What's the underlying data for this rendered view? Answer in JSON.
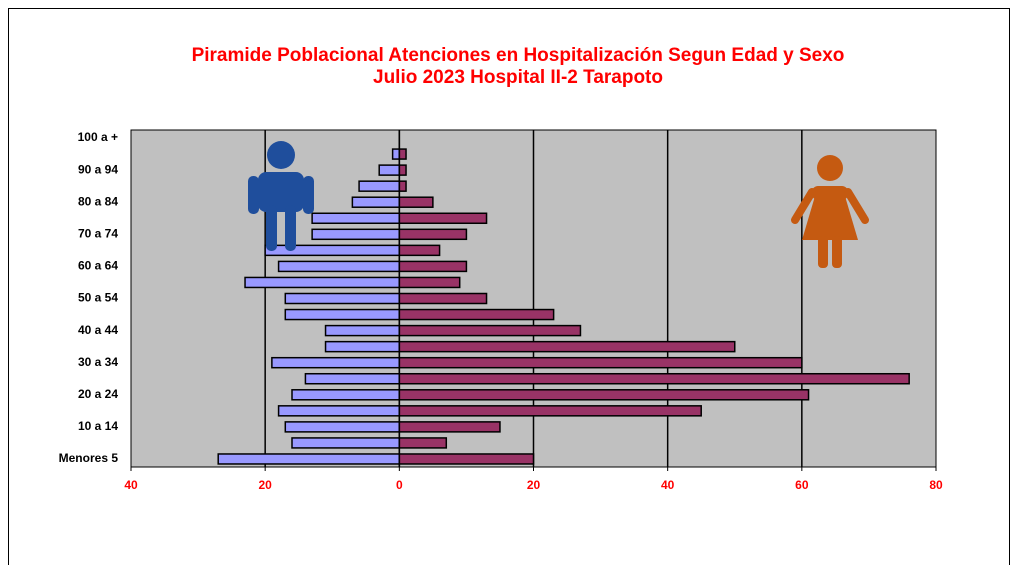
{
  "chart_data": {
    "type": "pyramid",
    "title": "Piramide Poblacional  Atenciones en Hospitalización Segun Edad y Sexo",
    "subtitle": "Julio 2023  Hospital II-2 Tarapoto",
    "categories": [
      "Menores 5",
      null,
      "10 a 14",
      null,
      "20 a 24",
      null,
      "30 a 34",
      null,
      "40 a 44",
      null,
      "50 a 54",
      null,
      "60 a 64",
      null,
      "70 a 74",
      null,
      "80 a 84",
      null,
      "90 a 94",
      null,
      "100 a +"
    ],
    "series": [
      {
        "color": "#9999ff",
        "values": [
          -27,
          -16,
          -17,
          -18,
          -16,
          -14,
          -19,
          -11,
          -11,
          -17,
          -17,
          -23,
          -18,
          -20,
          -13,
          -13,
          -7,
          -6,
          -3,
          -1,
          0
        ]
      },
      {
        "color": "#993366",
        "values": [
          20,
          7,
          15,
          45,
          61,
          76,
          60,
          50,
          27,
          23,
          13,
          9,
          10,
          6,
          10,
          13,
          5,
          1,
          1,
          1,
          0
        ]
      }
    ],
    "xlim": [
      -40,
      80
    ],
    "xticks": [
      {
        "value": -40,
        "label": "40"
      },
      {
        "value": -20,
        "label": "20"
      },
      0,
      20,
      40,
      60,
      80
    ],
    "grid": true
  }
}
